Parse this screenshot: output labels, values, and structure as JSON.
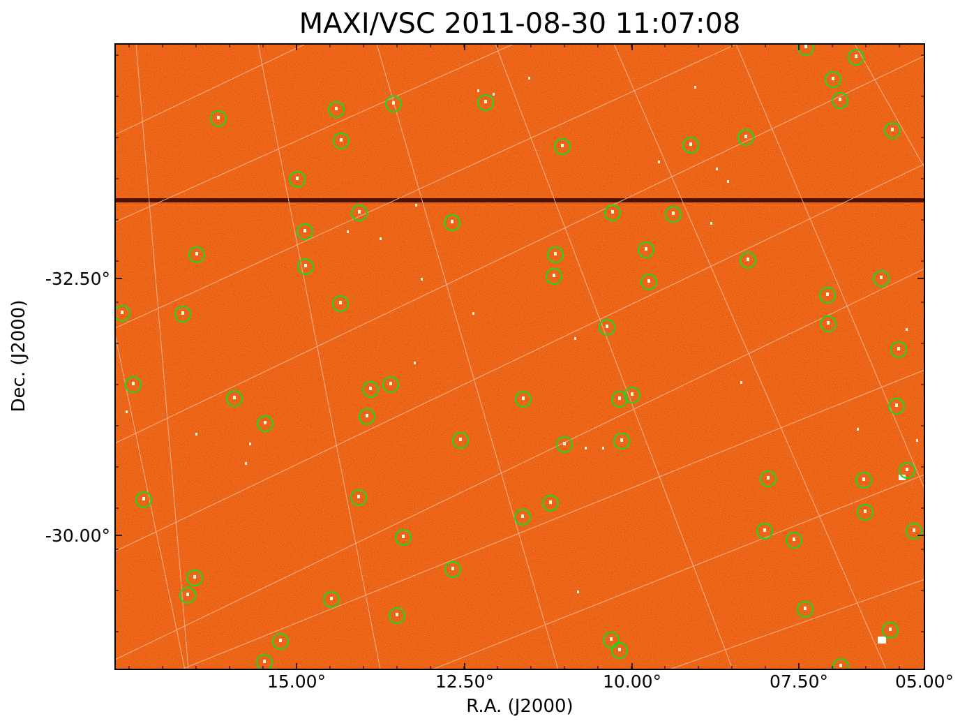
{
  "title": "MAXI/VSC 2011-08-30 11:07:08",
  "xlabel": "R.A. (J2000)",
  "ylabel": "Dec. (J2000)",
  "x_ticks": [
    "15.00°",
    "12.50°",
    "10.00°",
    "07.50°",
    "05.00°"
  ],
  "y_ticks": [
    "-32.50°",
    "-30.00°"
  ],
  "colors": {
    "background": "#ea5a13",
    "grid": "#f3b89a",
    "source_circle": "#22d322",
    "streak": "#3a0a00"
  },
  "sources_count_note": ""
}
